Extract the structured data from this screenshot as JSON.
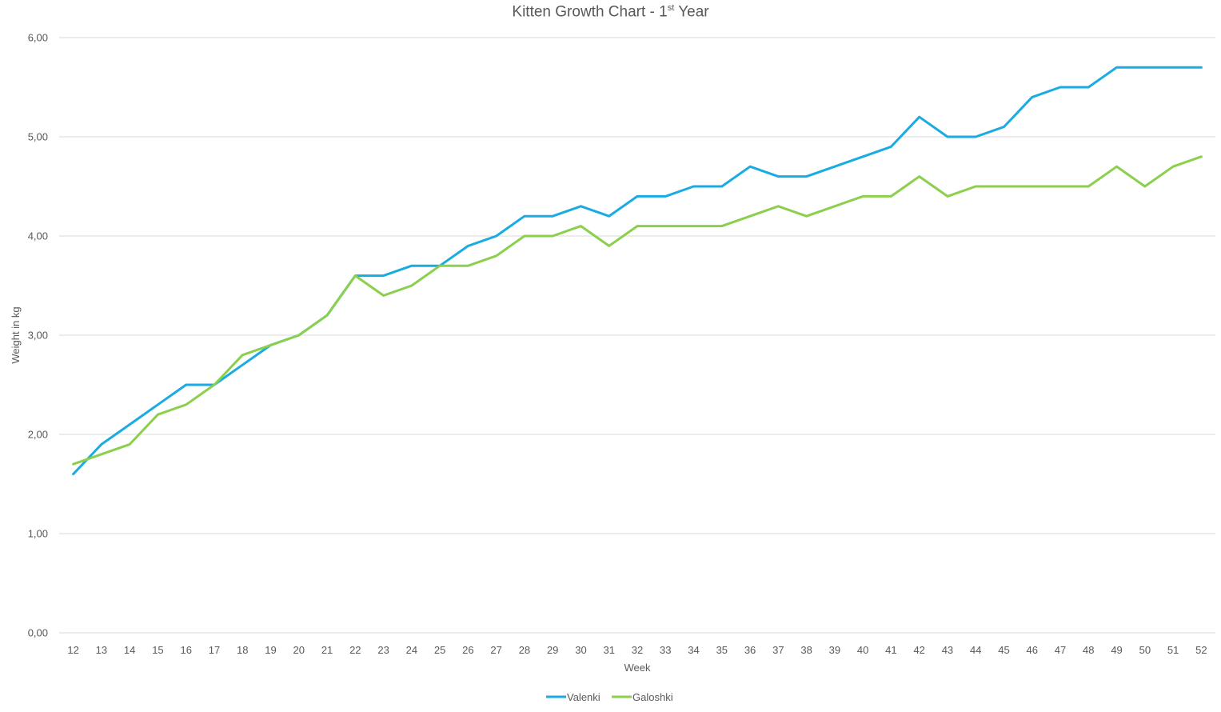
{
  "chart_data": {
    "type": "line",
    "title": {
      "main": "Kitten Growth Chart - 1",
      "superscript": "st",
      "suffix": " Year"
    },
    "xlabel": "Week",
    "ylabel": "Weight in kg",
    "ylim": [
      0,
      6
    ],
    "yticks": [
      "0,00",
      "1,00",
      "2,00",
      "3,00",
      "4,00",
      "5,00",
      "6,00"
    ],
    "grid": "horizontal",
    "legend_position": "bottom",
    "categories": [
      "12",
      "13",
      "14",
      "15",
      "16",
      "17",
      "18",
      "19",
      "20",
      "21",
      "22",
      "23",
      "24",
      "25",
      "26",
      "27",
      "28",
      "29",
      "30",
      "31",
      "32",
      "33",
      "34",
      "35",
      "36",
      "37",
      "38",
      "39",
      "40",
      "41",
      "42",
      "43",
      "44",
      "45",
      "46",
      "47",
      "48",
      "49",
      "50",
      "51",
      "52"
    ],
    "series": [
      {
        "name": "Valenki",
        "color": "#1aabe2",
        "values": [
          1.6,
          1.9,
          2.1,
          2.3,
          2.5,
          2.5,
          2.7,
          2.9,
          3.0,
          3.2,
          3.6,
          3.6,
          3.7,
          3.7,
          3.9,
          4.0,
          4.2,
          4.2,
          4.3,
          4.2,
          4.4,
          4.4,
          4.5,
          4.5,
          4.7,
          4.6,
          4.6,
          4.7,
          4.8,
          4.9,
          5.2,
          5.0,
          5.0,
          5.1,
          5.4,
          5.5,
          5.5,
          5.7,
          5.7,
          5.7,
          5.7
        ]
      },
      {
        "name": "Galoshki",
        "color": "#8ccf4d",
        "values": [
          1.7,
          1.8,
          1.9,
          2.2,
          2.3,
          2.5,
          2.8,
          2.9,
          3.0,
          3.2,
          3.6,
          3.4,
          3.5,
          3.7,
          3.7,
          3.8,
          4.0,
          4.0,
          4.1,
          3.9,
          4.1,
          4.1,
          4.1,
          4.1,
          4.2,
          4.3,
          4.2,
          4.3,
          4.4,
          4.4,
          4.6,
          4.4,
          4.5,
          4.5,
          4.5,
          4.5,
          4.5,
          4.7,
          4.5,
          4.7,
          4.8
        ]
      }
    ]
  }
}
